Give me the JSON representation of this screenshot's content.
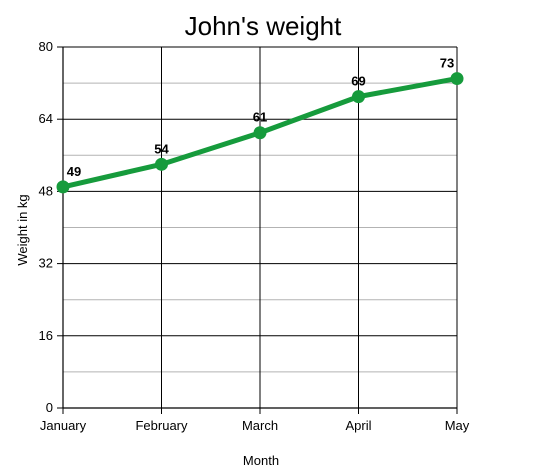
{
  "chart_data": {
    "type": "line",
    "title": "John's weight",
    "xlabel": "Month",
    "ylabel": "Weight in kg",
    "categories": [
      "January",
      "February",
      "March",
      "April",
      "May"
    ],
    "series": [
      {
        "values": [
          49,
          54,
          61,
          69,
          73
        ],
        "color": "#169b3c"
      }
    ],
    "ylim": [
      0,
      80
    ],
    "y_ticks": [
      0,
      16,
      32,
      48,
      64,
      80
    ],
    "y_tick_labels": [
      "0",
      "16",
      "32",
      "48",
      "64",
      "80"
    ],
    "minor_y_ticks": [
      8,
      24,
      40,
      56,
      72
    ],
    "grid": true,
    "legend": "none",
    "colors": {
      "major_grid": "#000000",
      "minor_grid": "#b3b3b3",
      "line": "#169b3c"
    }
  }
}
